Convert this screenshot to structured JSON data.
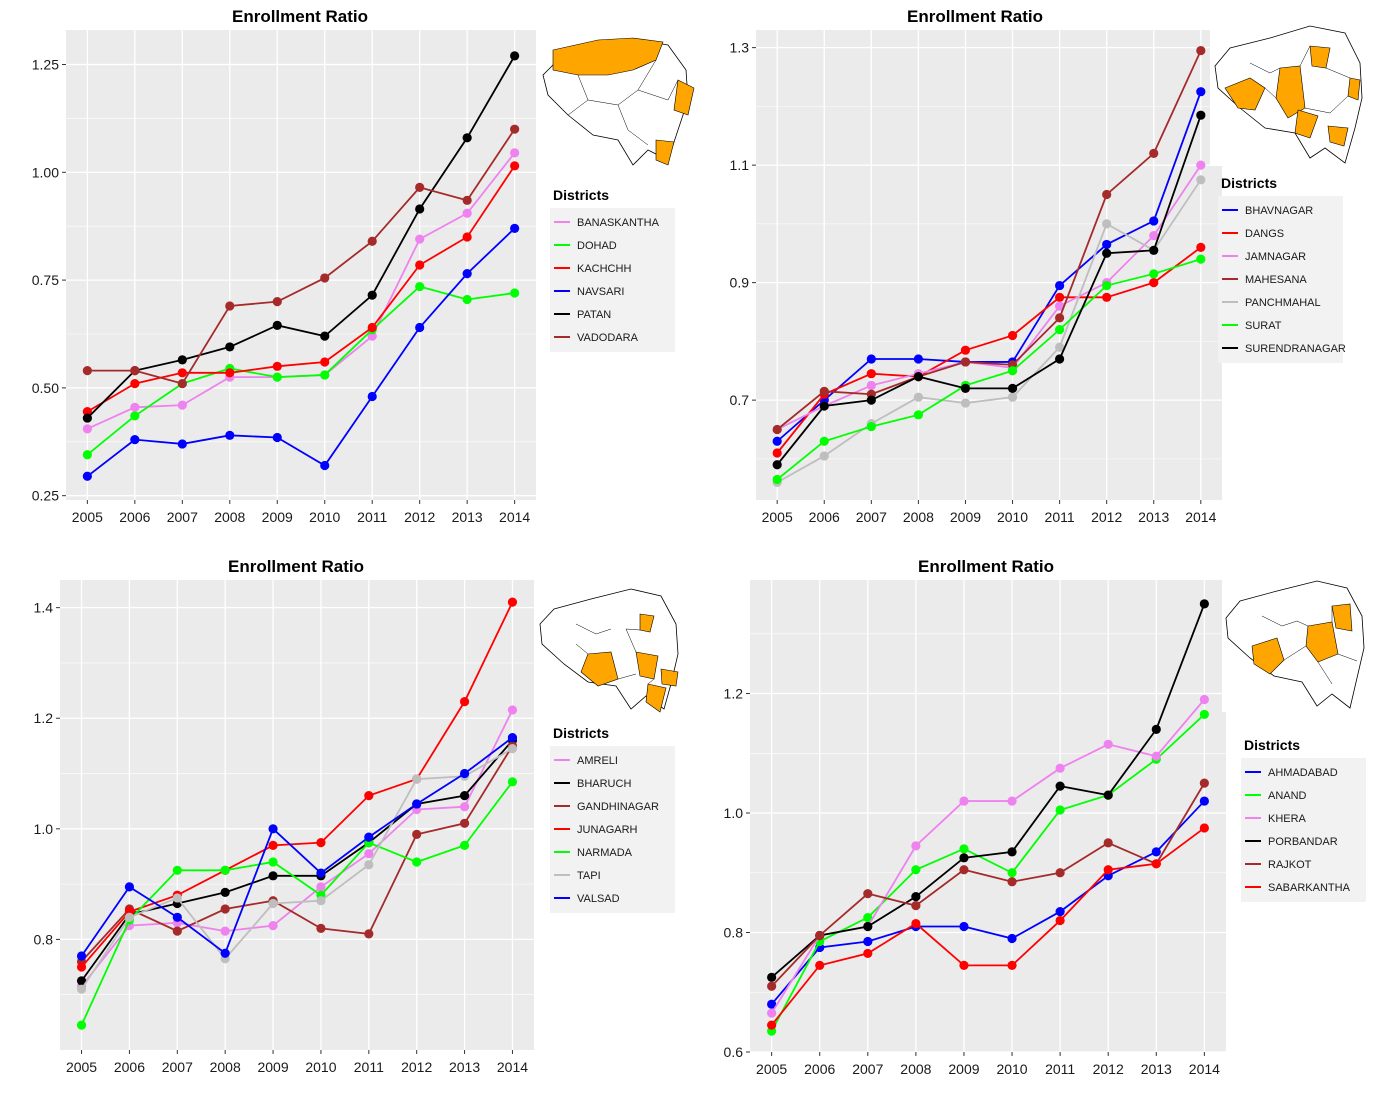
{
  "chart_data": [
    {
      "type": "line",
      "title": "Enrollment Ratio",
      "x": [
        2005,
        2006,
        2007,
        2008,
        2009,
        2010,
        2011,
        2012,
        2013,
        2014
      ],
      "ylim": [
        0.24,
        1.33
      ],
      "yticks": [
        0.25,
        0.5,
        0.75,
        1.0,
        1.25
      ],
      "ytick_labels": [
        "0.25",
        "0.50",
        "0.75",
        "1.00",
        "1.25"
      ],
      "legend_title": "Districts",
      "grid": true,
      "legend_position": "right",
      "series": [
        {
          "name": "BANASKANTHA",
          "color": "#ee82ee",
          "values": [
            0.405,
            0.455,
            0.46,
            0.525,
            0.525,
            0.53,
            0.62,
            0.845,
            0.905,
            1.045
          ]
        },
        {
          "name": "DOHAD",
          "color": "#00ff00",
          "values": [
            0.345,
            0.435,
            0.51,
            0.545,
            0.525,
            0.53,
            0.635,
            0.735,
            0.705,
            0.72
          ]
        },
        {
          "name": "KACHCHH",
          "color": "#ff0000",
          "values": [
            0.445,
            0.51,
            0.535,
            0.535,
            0.55,
            0.56,
            0.64,
            0.785,
            0.85,
            1.015
          ]
        },
        {
          "name": "NAVSARI",
          "color": "#0000ff",
          "values": [
            0.295,
            0.38,
            0.37,
            0.39,
            0.385,
            0.32,
            0.48,
            0.64,
            0.765,
            0.87
          ]
        },
        {
          "name": "PATAN",
          "color": "#000000",
          "values": [
            0.43,
            0.54,
            0.565,
            0.595,
            0.645,
            0.62,
            0.715,
            0.915,
            1.08,
            1.27
          ]
        },
        {
          "name": "VADODARA",
          "color": "#a52a2a",
          "values": [
            0.54,
            0.54,
            0.51,
            0.69,
            0.7,
            0.755,
            0.84,
            0.965,
            0.935,
            1.1
          ]
        }
      ]
    },
    {
      "type": "line",
      "title": "Enrollment Ratio",
      "x": [
        2005,
        2006,
        2007,
        2008,
        2009,
        2010,
        2011,
        2012,
        2013,
        2014
      ],
      "ylim": [
        0.53,
        1.33
      ],
      "yticks": [
        0.7,
        0.9,
        1.1,
        1.3
      ],
      "ytick_labels": [
        "0.7",
        "0.9",
        "1.1",
        "1.3"
      ],
      "legend_title": "Districts",
      "grid": true,
      "legend_position": "right",
      "series": [
        {
          "name": "BHAVNAGAR",
          "color": "#0000ff",
          "values": [
            0.63,
            0.7,
            0.77,
            0.77,
            0.765,
            0.765,
            0.895,
            0.965,
            1.005,
            1.225
          ]
        },
        {
          "name": "DANGS",
          "color": "#ff0000",
          "values": [
            0.61,
            0.71,
            0.745,
            0.74,
            0.785,
            0.81,
            0.875,
            0.875,
            0.9,
            0.96
          ]
        },
        {
          "name": "JAMNAGAR",
          "color": "#ee82ee",
          "values": [
            0.65,
            0.69,
            0.725,
            0.745,
            0.765,
            0.755,
            0.86,
            0.9,
            0.98,
            1.1
          ]
        },
        {
          "name": "MAHESANA",
          "color": "#a52a2a",
          "values": [
            0.65,
            0.715,
            0.71,
            0.74,
            0.765,
            0.76,
            0.84,
            1.05,
            1.12,
            1.295
          ]
        },
        {
          "name": "PANCHMAHAL",
          "color": "#bebebe",
          "values": [
            0.56,
            0.605,
            0.66,
            0.705,
            0.695,
            0.705,
            0.79,
            1.0,
            0.955,
            1.075
          ]
        },
        {
          "name": "SURAT",
          "color": "#00ff00",
          "values": [
            0.565,
            0.63,
            0.655,
            0.675,
            0.725,
            0.75,
            0.82,
            0.895,
            0.915,
            0.94
          ]
        },
        {
          "name": "SURENDRANAGAR",
          "color": "#000000",
          "values": [
            0.59,
            0.69,
            0.7,
            0.74,
            0.72,
            0.72,
            0.77,
            0.95,
            0.955,
            1.185
          ]
        }
      ]
    },
    {
      "type": "line",
      "title": "Enrollment Ratio",
      "x": [
        2005,
        2006,
        2007,
        2008,
        2009,
        2010,
        2011,
        2012,
        2013,
        2014
      ],
      "ylim": [
        0.6,
        1.45
      ],
      "yticks": [
        0.8,
        1.0,
        1.2,
        1.4
      ],
      "ytick_labels": [
        "0.8",
        "1.0",
        "1.2",
        "1.4"
      ],
      "legend_title": "Districts",
      "grid": true,
      "legend_position": "right",
      "series": [
        {
          "name": "AMRELI",
          "color": "#ee82ee",
          "values": [
            0.715,
            0.825,
            0.83,
            0.815,
            0.825,
            0.895,
            0.955,
            1.035,
            1.04,
            1.215
          ]
        },
        {
          "name": "BHARUCH",
          "color": "#000000",
          "values": [
            0.725,
            0.845,
            0.865,
            0.885,
            0.915,
            0.915,
            0.975,
            1.045,
            1.06,
            1.16
          ]
        },
        {
          "name": "GANDHINAGAR",
          "color": "#a52a2a",
          "values": [
            0.76,
            0.855,
            0.815,
            0.855,
            0.87,
            0.82,
            0.81,
            0.99,
            1.01,
            1.15
          ]
        },
        {
          "name": "JUNAGARH",
          "color": "#ff0000",
          "values": [
            0.75,
            0.85,
            0.88,
            0.925,
            0.97,
            0.975,
            1.06,
            1.09,
            1.23,
            1.41
          ]
        },
        {
          "name": "NARMADA",
          "color": "#00ff00",
          "values": [
            0.645,
            0.835,
            0.925,
            0.925,
            0.94,
            0.88,
            0.975,
            0.94,
            0.97,
            1.085
          ]
        },
        {
          "name": "TAPI",
          "color": "#bebebe",
          "values": [
            0.71,
            0.84,
            0.875,
            0.765,
            0.865,
            0.87,
            0.935,
            1.09,
            1.095,
            1.145
          ]
        },
        {
          "name": "VALSAD",
          "color": "#0000ff",
          "values": [
            0.77,
            0.895,
            0.84,
            0.775,
            1.0,
            0.92,
            0.985,
            1.045,
            1.1,
            1.165
          ]
        }
      ]
    },
    {
      "type": "line",
      "title": "Enrollment Ratio",
      "x": [
        2005,
        2006,
        2007,
        2008,
        2009,
        2010,
        2011,
        2012,
        2013,
        2014
      ],
      "ylim": [
        0.6,
        1.39
      ],
      "yticks": [
        0.6,
        0.8,
        1.0,
        1.2
      ],
      "ytick_labels": [
        "0.6",
        "0.8",
        "1.0",
        "1.2"
      ],
      "legend_title": "Districts",
      "grid": true,
      "legend_position": "right",
      "series": [
        {
          "name": "AHMADABAD",
          "color": "#0000ff",
          "values": [
            0.68,
            0.775,
            0.785,
            0.81,
            0.81,
            0.79,
            0.835,
            0.895,
            0.935,
            1.02
          ]
        },
        {
          "name": "ANAND",
          "color": "#00ff00",
          "values": [
            0.635,
            0.785,
            0.825,
            0.905,
            0.94,
            0.9,
            1.005,
            1.03,
            1.09,
            1.165
          ]
        },
        {
          "name": "KHERA",
          "color": "#ee82ee",
          "values": [
            0.665,
            0.795,
            0.81,
            0.945,
            1.02,
            1.02,
            1.075,
            1.115,
            1.095,
            1.19
          ]
        },
        {
          "name": "PORBANDAR",
          "color": "#000000",
          "values": [
            0.725,
            0.795,
            0.81,
            0.86,
            0.925,
            0.935,
            1.045,
            1.03,
            1.14,
            1.35
          ]
        },
        {
          "name": "RAJKOT",
          "color": "#a52a2a",
          "values": [
            0.71,
            0.795,
            0.865,
            0.845,
            0.905,
            0.885,
            0.9,
            0.95,
            0.915,
            1.05
          ]
        },
        {
          "name": "SABARKANTHA",
          "color": "#ff0000",
          "values": [
            0.645,
            0.745,
            0.765,
            0.815,
            0.745,
            0.745,
            0.82,
            0.905,
            0.915,
            0.975
          ]
        }
      ]
    }
  ],
  "map_colors": {
    "highlight": "#ffa500",
    "outline": "#000000",
    "base": "#ffffff"
  }
}
